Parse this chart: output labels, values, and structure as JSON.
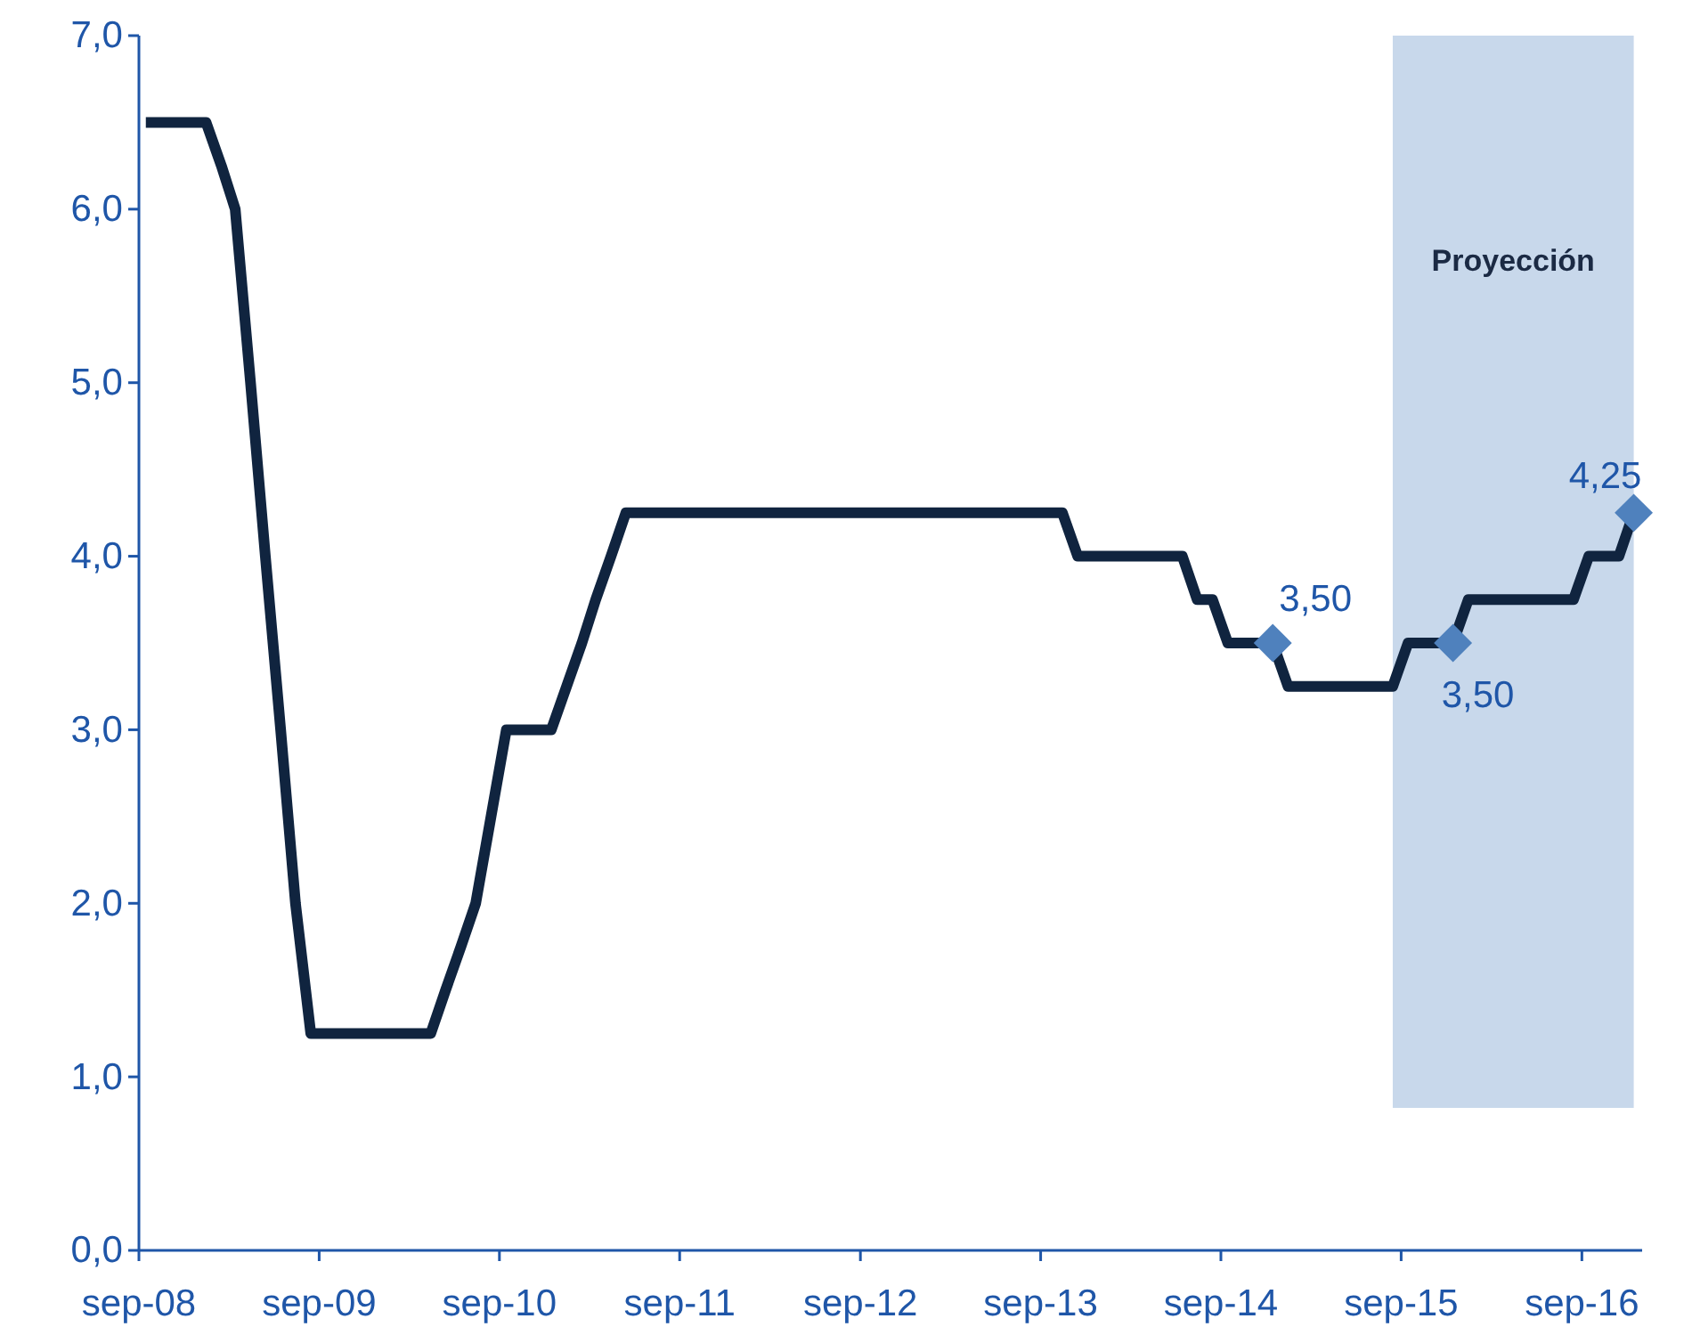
{
  "chart_data": {
    "type": "line",
    "xlim": [
      "2008-09-01",
      "2017-01-01"
    ],
    "xticks": [
      {
        "value": "2008-09-01",
        "label": "sep-08"
      },
      {
        "value": "2009-09-01",
        "label": "sep-09"
      },
      {
        "value": "2010-09-01",
        "label": "sep-10"
      },
      {
        "value": "2011-09-01",
        "label": "sep-11"
      },
      {
        "value": "2012-09-01",
        "label": "sep-12"
      },
      {
        "value": "2013-09-01",
        "label": "sep-13"
      },
      {
        "value": "2014-09-01",
        "label": "sep-14"
      },
      {
        "value": "2015-09-01",
        "label": "sep-15"
      },
      {
        "value": "2016-09-01",
        "label": "sep-16"
      }
    ],
    "ylim": [
      0,
      7
    ],
    "yticks": [
      {
        "value": 0,
        "label": "0,0"
      },
      {
        "value": 1,
        "label": "1,0"
      },
      {
        "value": 2,
        "label": "2,0"
      },
      {
        "value": 3,
        "label": "3,0"
      },
      {
        "value": 4,
        "label": "4,0"
      },
      {
        "value": 5,
        "label": "5,0"
      },
      {
        "value": 6,
        "label": "6,0"
      },
      {
        "value": 7,
        "label": "7,0"
      }
    ],
    "bands": [
      {
        "axis": "x",
        "from": "2015-08-15",
        "to": "2016-12-15",
        "label": "Proyección",
        "color": "#c8d8eb"
      }
    ],
    "series": [
      {
        "color": "#10243f",
        "line_style": "solid",
        "marker": "none",
        "x": [
          "2008-09-15",
          "2008-10-15",
          "2008-11-15",
          "2008-12-15",
          "2009-01-15",
          "2009-02-15",
          "2009-03-15",
          "2009-04-15",
          "2009-05-15",
          "2009-06-15",
          "2009-07-15",
          "2009-08-15",
          "2009-09-15",
          "2009-10-15",
          "2009-11-15",
          "2009-12-15",
          "2010-01-15",
          "2010-02-15",
          "2010-03-15",
          "2010-04-15",
          "2010-05-15",
          "2010-06-15",
          "2010-07-15",
          "2010-08-15",
          "2010-09-15",
          "2010-10-15",
          "2010-11-15",
          "2010-12-15",
          "2011-01-15",
          "2011-02-15",
          "2011-03-15",
          "2011-04-15",
          "2011-05-15",
          "2011-06-15",
          "2011-07-15",
          "2011-08-15",
          "2011-09-15",
          "2011-10-15",
          "2011-11-15",
          "2011-12-15",
          "2012-01-15",
          "2012-02-15",
          "2012-03-15",
          "2012-04-15",
          "2012-05-15",
          "2012-06-15",
          "2012-07-15",
          "2012-08-15",
          "2012-09-15",
          "2012-10-15",
          "2012-11-15",
          "2012-12-15",
          "2013-01-15",
          "2013-02-15",
          "2013-03-15",
          "2013-04-15",
          "2013-05-15",
          "2013-06-15",
          "2013-07-15",
          "2013-08-15",
          "2013-09-15",
          "2013-10-15",
          "2013-11-15",
          "2013-12-15",
          "2014-01-15",
          "2014-02-15",
          "2014-03-15",
          "2014-04-15",
          "2014-05-15",
          "2014-06-15",
          "2014-07-15",
          "2014-08-15",
          "2014-09-15",
          "2014-10-15",
          "2014-11-15",
          "2014-12-15",
          "2015-01-15",
          "2015-02-15",
          "2015-03-15",
          "2015-04-15",
          "2015-05-15",
          "2015-06-15",
          "2015-07-15",
          "2015-08-15",
          "2015-09-15",
          "2015-10-15",
          "2015-11-15",
          "2015-12-15",
          "2016-01-15",
          "2016-02-15",
          "2016-03-15",
          "2016-04-15",
          "2016-05-15",
          "2016-06-15",
          "2016-07-15",
          "2016-08-15",
          "2016-09-15",
          "2016-10-15",
          "2016-11-15",
          "2016-12-15"
        ],
        "values": [
          6.5,
          6.5,
          6.5,
          6.5,
          6.5,
          6.25,
          6.0,
          5.0,
          4.0,
          3.0,
          2.0,
          1.25,
          1.25,
          1.25,
          1.25,
          1.25,
          1.25,
          1.25,
          1.25,
          1.25,
          1.5,
          1.75,
          2.0,
          2.5,
          3.0,
          3.0,
          3.0,
          3.0,
          3.25,
          3.5,
          3.75,
          4.0,
          4.25,
          4.25,
          4.25,
          4.25,
          4.25,
          4.25,
          4.25,
          4.25,
          4.25,
          4.25,
          4.25,
          4.25,
          4.25,
          4.25,
          4.25,
          4.25,
          4.25,
          4.25,
          4.25,
          4.25,
          4.25,
          4.25,
          4.25,
          4.25,
          4.25,
          4.25,
          4.25,
          4.25,
          4.25,
          4.25,
          4.0,
          4.0,
          4.0,
          4.0,
          4.0,
          4.0,
          4.0,
          4.0,
          3.75,
          3.75,
          3.5,
          3.5,
          3.5,
          3.5,
          3.25,
          3.25,
          3.25,
          3.25,
          3.25,
          3.25,
          3.25,
          3.25,
          3.5,
          3.5,
          3.5,
          3.5,
          3.75,
          3.75,
          3.75,
          3.75,
          3.75,
          3.75,
          3.75,
          3.75,
          4.0,
          4.0,
          4.0,
          4.25
        ]
      },
      {
        "type": "scatter",
        "color": "#4f81bd",
        "marker": "diamond",
        "x": [
          "2014-12-15",
          "2015-12-15",
          "2016-12-15"
        ],
        "values": [
          3.5,
          3.5,
          4.25
        ],
        "value_labels": [
          "3,50",
          "3,50",
          "4,25"
        ]
      }
    ]
  }
}
